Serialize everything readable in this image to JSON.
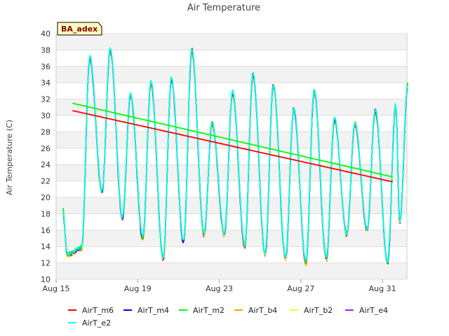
{
  "chart_data": {
    "type": "line",
    "title": "Air Temperature",
    "xlabel": "",
    "ylabel": "Air Temperature (C)",
    "ylim": [
      10,
      40
    ],
    "yticks": [
      10,
      12,
      14,
      16,
      18,
      20,
      22,
      24,
      26,
      28,
      30,
      32,
      34,
      36,
      38,
      40
    ],
    "xlim": [
      15,
      32.2
    ],
    "xticks": [
      {
        "value": 15,
        "label": "Aug 15"
      },
      {
        "value": 19,
        "label": "Aug 19"
      },
      {
        "value": 23,
        "label": "Aug 23"
      },
      {
        "value": 27,
        "label": "Aug 27"
      },
      {
        "value": 31,
        "label": "Aug 31"
      }
    ],
    "site_label": "BA_adex",
    "grid": true,
    "legend_position": "bottom",
    "daily_extremes": {
      "day": [
        15.3,
        16.0,
        17.0,
        18.0,
        19.0,
        20.0,
        21.0,
        22.0,
        23.0,
        24.0,
        25.0,
        26.0,
        27.0,
        28.0,
        29.0,
        30.0,
        31.0,
        31.6
      ],
      "max": [
        null,
        37.0,
        38.0,
        32.5,
        34.0,
        34.5,
        38.0,
        29.0,
        32.8,
        35.0,
        33.7,
        30.8,
        33.0,
        29.5,
        29.0,
        30.6,
        31.3,
        33.8
      ],
      "min": [
        13.0,
        13.8,
        20.7,
        17.5,
        15.0,
        12.5,
        14.5,
        15.5,
        15.5,
        14.0,
        13.0,
        12.5,
        12.0,
        12.5,
        15.5,
        16.0,
        12.0,
        17.0
      ]
    },
    "series": [
      {
        "name": "AirT_m6",
        "color": "#ff0000",
        "trend": {
          "x": [
            15.8,
            31.5
          ],
          "y": [
            30.6,
            21.9
          ]
        }
      },
      {
        "name": "AirT_m4",
        "color": "#0000ff"
      },
      {
        "name": "AirT_m2",
        "color": "#00ff00",
        "trend": {
          "x": [
            15.8,
            31.5
          ],
          "y": [
            31.5,
            22.5
          ]
        }
      },
      {
        "name": "AirT_b4",
        "color": "#ffa500"
      },
      {
        "name": "AirT_b2",
        "color": "#ffff00"
      },
      {
        "name": "AirT_e4",
        "color": "#a020f0"
      },
      {
        "name": "AirT_e2",
        "color": "#00ffff"
      }
    ]
  }
}
